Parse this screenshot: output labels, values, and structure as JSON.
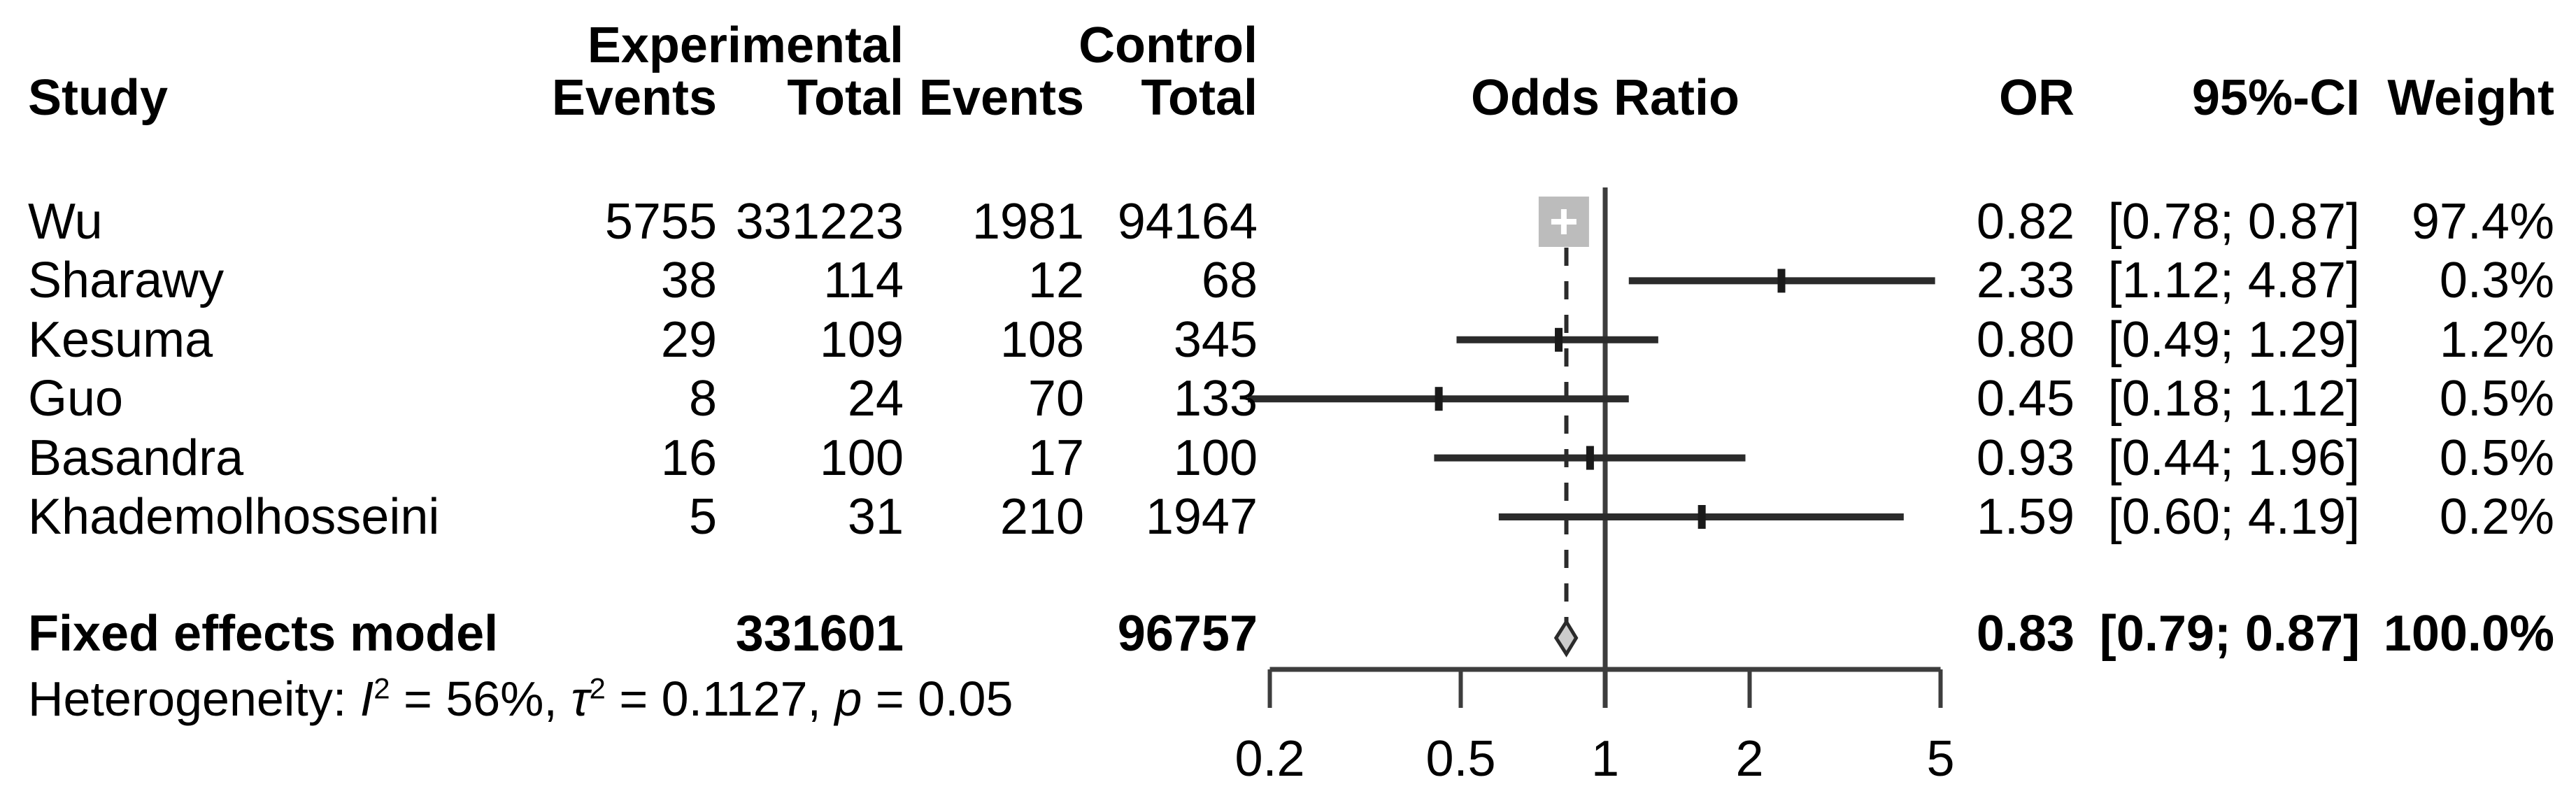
{
  "header": {
    "group_experimental": "Experimental",
    "group_control": "Control",
    "study": "Study",
    "exp_events": "Events",
    "exp_total": "Total",
    "ctrl_events": "Events",
    "ctrl_total": "Total",
    "odds_ratio": "Odds Ratio",
    "or": "OR",
    "ci": "95%-CI",
    "weight": "Weight"
  },
  "studies": [
    {
      "name": "Wu",
      "exp_events": "5755",
      "exp_total": "331223",
      "ctrl_events": "1981",
      "ctrl_total": "94164",
      "or": "0.82",
      "ci": "[0.78; 0.87]",
      "weight": "97.4%"
    },
    {
      "name": "Sharawy",
      "exp_events": "38",
      "exp_total": "114",
      "ctrl_events": "12",
      "ctrl_total": "68",
      "or": "2.33",
      "ci": "[1.12; 4.87]",
      "weight": "0.3%"
    },
    {
      "name": "Kesuma",
      "exp_events": "29",
      "exp_total": "109",
      "ctrl_events": "108",
      "ctrl_total": "345",
      "or": "0.80",
      "ci": "[0.49; 1.29]",
      "weight": "1.2%"
    },
    {
      "name": "Guo",
      "exp_events": "8",
      "exp_total": "24",
      "ctrl_events": "70",
      "ctrl_total": "133",
      "or": "0.45",
      "ci": "[0.18; 1.12]",
      "weight": "0.5%"
    },
    {
      "name": "Basandra",
      "exp_events": "16",
      "exp_total": "100",
      "ctrl_events": "17",
      "ctrl_total": "100",
      "or": "0.93",
      "ci": "[0.44; 1.96]",
      "weight": "0.5%"
    },
    {
      "name": "Khademolhosseini",
      "exp_events": "5",
      "exp_total": "31",
      "ctrl_events": "210",
      "ctrl_total": "1947",
      "or": "1.59",
      "ci": "[0.60; 4.19]",
      "weight": "0.2%"
    }
  ],
  "summary": {
    "name": "Fixed effects model",
    "exp_total": "331601",
    "ctrl_total": "96757",
    "or": "0.83",
    "ci": "[0.79; 0.87]",
    "weight": "100.0%"
  },
  "heterogeneity": {
    "label": "Heterogeneity: ",
    "i_symbol": "I",
    "i_sup": "2",
    "i_rest": " = 56%, ",
    "tau_symbol": "τ",
    "tau_sup": "2",
    "tau_rest": " = 0.1127, ",
    "p_symbol": "p",
    "p_rest": " = 0.05"
  },
  "axis": {
    "tick_labels": [
      "0.2",
      "0.5",
      "1",
      "2",
      "5"
    ]
  },
  "chart_data": {
    "type": "forest",
    "effect_measure": "Odds Ratio",
    "scale": "log10",
    "x_axis": {
      "ticks": [
        0.2,
        0.5,
        1,
        2,
        5
      ],
      "range": [
        0.2,
        5
      ],
      "ref_line": 1
    },
    "studies": [
      {
        "name": "Wu",
        "exp_events": 5755,
        "exp_total": 331223,
        "ctrl_events": 1981,
        "ctrl_total": 94164,
        "or": 0.82,
        "ci_low": 0.78,
        "ci_high": 0.87,
        "weight_pct": 97.4
      },
      {
        "name": "Sharawy",
        "exp_events": 38,
        "exp_total": 114,
        "ctrl_events": 12,
        "ctrl_total": 68,
        "or": 2.33,
        "ci_low": 1.12,
        "ci_high": 4.87,
        "weight_pct": 0.3
      },
      {
        "name": "Kesuma",
        "exp_events": 29,
        "exp_total": 109,
        "ctrl_events": 108,
        "ctrl_total": 345,
        "or": 0.8,
        "ci_low": 0.49,
        "ci_high": 1.29,
        "weight_pct": 1.2
      },
      {
        "name": "Guo",
        "exp_events": 8,
        "exp_total": 24,
        "ctrl_events": 70,
        "ctrl_total": 133,
        "or": 0.45,
        "ci_low": 0.18,
        "ci_high": 1.12,
        "weight_pct": 0.5
      },
      {
        "name": "Basandra",
        "exp_events": 16,
        "exp_total": 100,
        "ctrl_events": 17,
        "ctrl_total": 100,
        "or": 0.93,
        "ci_low": 0.44,
        "ci_high": 1.96,
        "weight_pct": 0.5
      },
      {
        "name": "Khademolhosseini",
        "exp_events": 5,
        "exp_total": 31,
        "ctrl_events": 210,
        "ctrl_total": 1947,
        "or": 1.59,
        "ci_low": 0.6,
        "ci_high": 4.19,
        "weight_pct": 0.2
      }
    ],
    "summary": {
      "name": "Fixed effects model",
      "model": "fixed",
      "exp_total": 331601,
      "ctrl_total": 96757,
      "or": 0.83,
      "ci_low": 0.79,
      "ci_high": 0.87,
      "weight_pct": 100.0
    },
    "heterogeneity": {
      "I2_pct": 56,
      "tau2": 0.1127,
      "p": 0.05
    },
    "colors": {
      "text": "#000000",
      "ci_line": "#2b2b2b",
      "ref_line": "#3d3d3d",
      "axis": "#3d3d3d",
      "square_fill": "#bcbcbc",
      "square_plus": "#ffffff",
      "diamond_fill": "#cccccc"
    }
  }
}
